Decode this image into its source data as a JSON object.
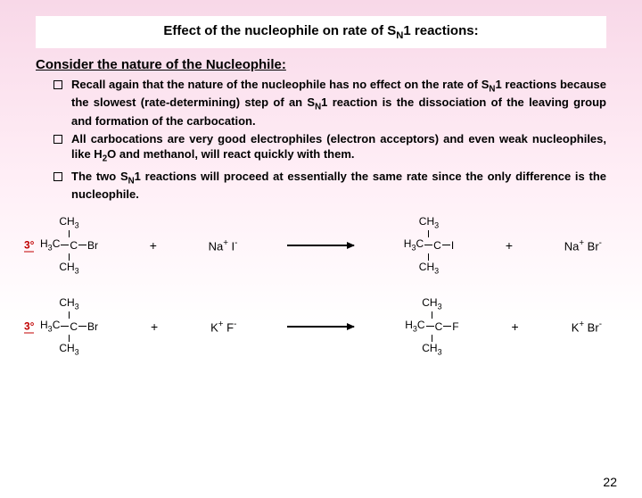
{
  "title": {
    "pre": "Effect of the nucleophile on rate of S",
    "sub": "N",
    "post": "1 reactions:"
  },
  "subtitle": "Consider the nature of the Nucleophile:",
  "bullets": [
    {
      "html": "Recall again that the nature of the nucleophile has no effect on the rate of S<sub>N</sub>1 reactions because the slowest (rate-determining) step of an S<sub>N</sub>1 reaction is the dissociation of the leaving group and formation of the carbocation."
    },
    {
      "html": "All carbocations are very good electrophiles (electron acceptors) and even weak nucleophiles, like H<sub>2</sub>O and methanol, will react quickly with them."
    },
    {
      "html": "The two S<sub>N</sub>1 reactions will proceed at essentially the same rate since the only difference is the nucleophile."
    }
  ],
  "tert_label": "3°",
  "reactions": [
    {
      "reagent_left": {
        "top": "CH<sub>3</sub>",
        "left": "H<sub>3</sub>C",
        "right": "Br",
        "bottom": "CH<sub>3</sub>"
      },
      "ion_in": "Na<sup>+</sup> I<sup>-</sup>",
      "product_left": {
        "top": "CH<sub>3</sub>",
        "left": "H<sub>3</sub>C",
        "right": "I",
        "bottom": "CH<sub>3</sub>"
      },
      "ion_out": "Na<sup>+</sup> Br<sup>-</sup>"
    },
    {
      "reagent_left": {
        "top": "CH<sub>3</sub>",
        "left": "H<sub>3</sub>C",
        "right": "Br",
        "bottom": "CH<sub>3</sub>"
      },
      "ion_in": "K<sup>+</sup> F<sup>-</sup>",
      "product_left": {
        "top": "CH<sub>3</sub>",
        "left": "H<sub>3</sub>C",
        "right": "F",
        "bottom": "CH<sub>3</sub>"
      },
      "ion_out": "K<sup>+</sup> Br<sup>-</sup>"
    }
  ],
  "page_number": "22"
}
